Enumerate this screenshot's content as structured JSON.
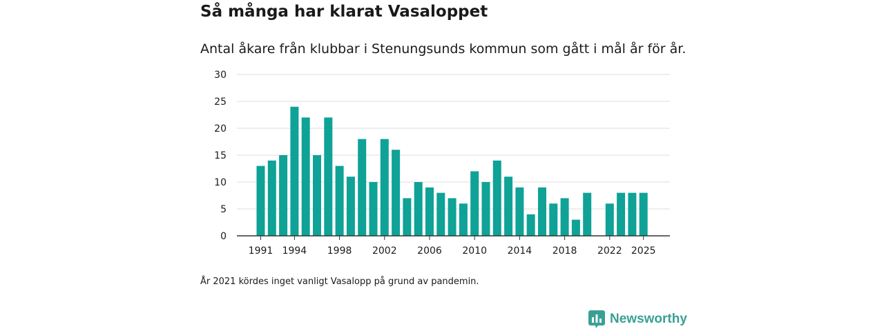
{
  "title": "Så många har klarat Vasaloppet",
  "subtitle": "Antal åkare från klubbar i Stenungsunds kommun som gått i mål år för år.",
  "note": "År 2021 kördes inget vanligt Vasalopp på grund av pandemin.",
  "brand": {
    "name": "Newsworthy",
    "icon": "newsworthy-logo-icon",
    "color": "#3aa095"
  },
  "colors": {
    "bar": "#0fa297",
    "grid": "#dcdcdc",
    "axis": "#333333"
  },
  "chart_data": {
    "type": "bar",
    "title": "Så många har klarat Vasaloppet",
    "subtitle": "Antal åkare från klubbar i Stenungsunds kommun som gått i mål år för år.",
    "xlabel": "",
    "ylabel": "",
    "categories": [
      1991,
      1992,
      1993,
      1994,
      1995,
      1996,
      1997,
      1998,
      1999,
      2000,
      2001,
      2002,
      2003,
      2004,
      2005,
      2006,
      2007,
      2008,
      2009,
      2010,
      2011,
      2012,
      2013,
      2014,
      2015,
      2016,
      2017,
      2018,
      2019,
      2020,
      2021,
      2022,
      2023,
      2024,
      2025
    ],
    "values": [
      13,
      14,
      15,
      24,
      22,
      15,
      22,
      13,
      11,
      18,
      10,
      18,
      16,
      7,
      10,
      9,
      8,
      7,
      6,
      12,
      10,
      14,
      11,
      9,
      4,
      9,
      6,
      7,
      3,
      8,
      null,
      6,
      8,
      8,
      8
    ],
    "x_tick_labels": [
      "1991",
      "1994",
      "1998",
      "2002",
      "2006",
      "2010",
      "2014",
      "2018",
      "2022",
      "2025"
    ],
    "y_ticks": [
      0,
      5,
      10,
      15,
      20,
      25,
      30
    ],
    "ylim": [
      0,
      30
    ],
    "grid": true,
    "legend": "none"
  }
}
